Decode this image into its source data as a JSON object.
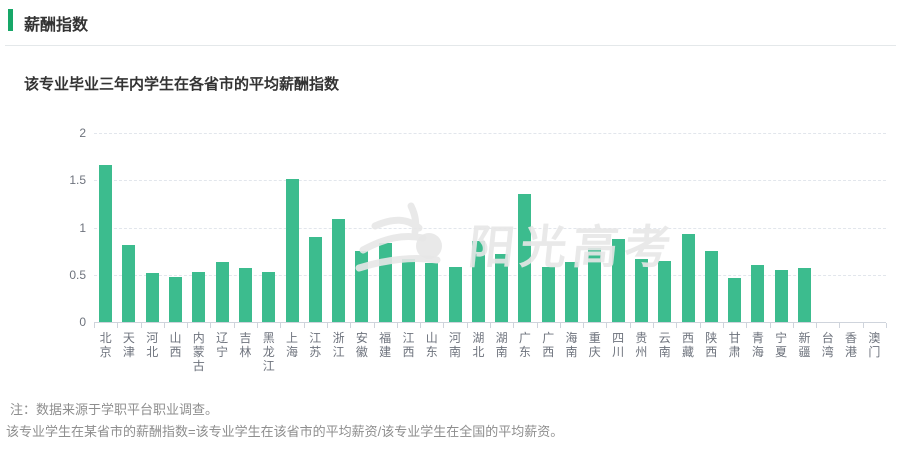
{
  "header": {
    "title": "薪酬指数"
  },
  "chart": {
    "title": "该专业毕业三年内学生在各省市的平均薪酬指数",
    "watermark": "阳光高考"
  },
  "notes": {
    "line1": "注：数据来源于学职平台职业调查。",
    "line2": "该专业学生在某省市的薪酬指数=该专业学生在该省市的平均薪资/该专业学生在全国的平均薪资。"
  },
  "colors": {
    "accent": "#17a768",
    "bar": "#3cbc8e",
    "title_text": "#333333",
    "axis_text": "#6e737d",
    "note_text": "#8e8e8e",
    "grid": "#e2e6ec",
    "axis_line": "#cfd4dc",
    "watermark": "#e7e7e7"
  },
  "chart_data": {
    "type": "bar",
    "title": "该专业毕业三年内学生在各省市的平均薪酬指数",
    "categories": [
      "北京",
      "天津",
      "河北",
      "山西",
      "内蒙古",
      "辽宁",
      "吉林",
      "黑龙江",
      "上海",
      "江苏",
      "浙江",
      "安徽",
      "福建",
      "江西",
      "山东",
      "河南",
      "湖北",
      "湖南",
      "广东",
      "广西",
      "海南",
      "重庆",
      "四川",
      "贵州",
      "云南",
      "西藏",
      "陕西",
      "甘肃",
      "青海",
      "宁夏",
      "新疆",
      "台湾",
      "香港",
      "澳门"
    ],
    "values": [
      1.66,
      0.81,
      0.52,
      0.48,
      0.53,
      0.63,
      0.57,
      0.53,
      1.51,
      0.9,
      1.09,
      0.75,
      0.84,
      0.67,
      0.62,
      0.58,
      0.86,
      0.72,
      1.35,
      0.58,
      0.64,
      0.78,
      0.88,
      0.67,
      0.65,
      0.93,
      0.75,
      0.47,
      0.6,
      0.55,
      0.57,
      0,
      0,
      0
    ],
    "ylim": [
      0,
      2
    ],
    "yticks": [
      0,
      0.5,
      1,
      1.5,
      2
    ],
    "xlabel": "",
    "ylabel": "",
    "grid": "horizontal-dashed",
    "legend": "none"
  }
}
